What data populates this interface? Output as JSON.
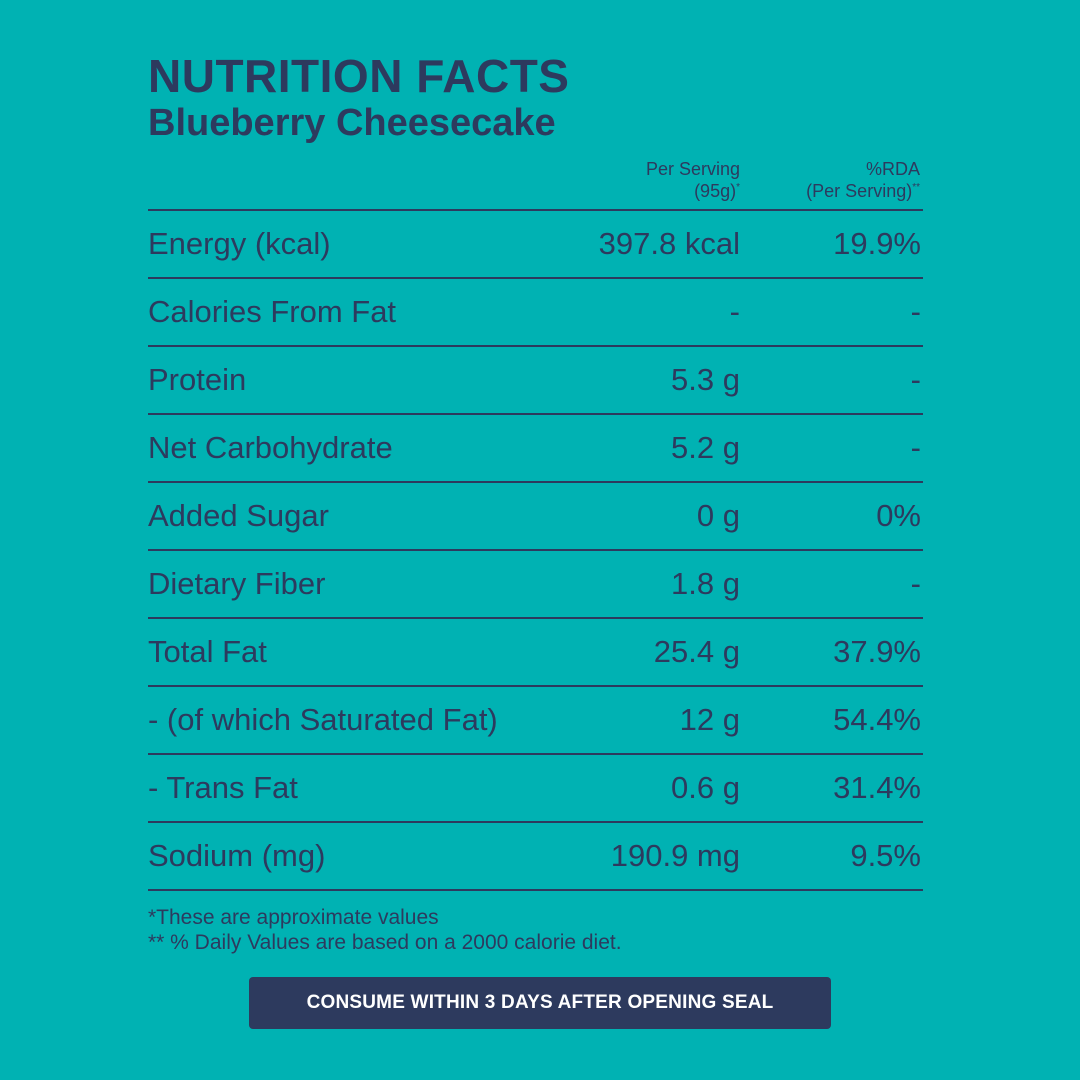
{
  "header": {
    "title": "NUTRITION FACTS",
    "subtitle": "Blueberry Cheesecake"
  },
  "columns": {
    "serving_line1": "Per Serving",
    "serving_line2": "(95g)",
    "serving_mark": "*",
    "rda_line1": "%RDA",
    "rda_line2": "(Per Serving)",
    "rda_mark": "**"
  },
  "rows": [
    {
      "name": "Energy (kcal)",
      "value": "397.8 kcal",
      "rda": "19.9%"
    },
    {
      "name": "Calories From Fat",
      "value": "-",
      "rda": "-"
    },
    {
      "name": "Protein",
      "value": "5.3 g",
      "rda": "-"
    },
    {
      "name": "Net Carbohydrate",
      "value": "5.2 g",
      "rda": "-"
    },
    {
      "name": "Added Sugar",
      "value": "0 g",
      "rda": "0%"
    },
    {
      "name": "Dietary Fiber",
      "value": "1.8 g",
      "rda": "-"
    },
    {
      "name": "Total Fat",
      "value": "25.4 g",
      "rda": "37.9%"
    },
    {
      "name": "- (of which Saturated Fat)",
      "value": "12 g",
      "rda": "54.4%"
    },
    {
      "name": "- Trans Fat",
      "value": "0.6 g",
      "rda": "31.4%"
    },
    {
      "name": "Sodium (mg)",
      "value": "190.9 mg",
      "rda": "9.5%"
    }
  ],
  "footnotes": {
    "note1": "*These are approximate values",
    "note2": "** % Daily Values are based on a 2000 calorie diet."
  },
  "banner": {
    "text": "CONSUME WITHIN 3 DAYS AFTER OPENING SEAL"
  },
  "colors": {
    "background": "#00b2b3",
    "text": "#2d3a5e",
    "banner_bg": "#2d3a5e",
    "banner_text": "#ffffff"
  }
}
